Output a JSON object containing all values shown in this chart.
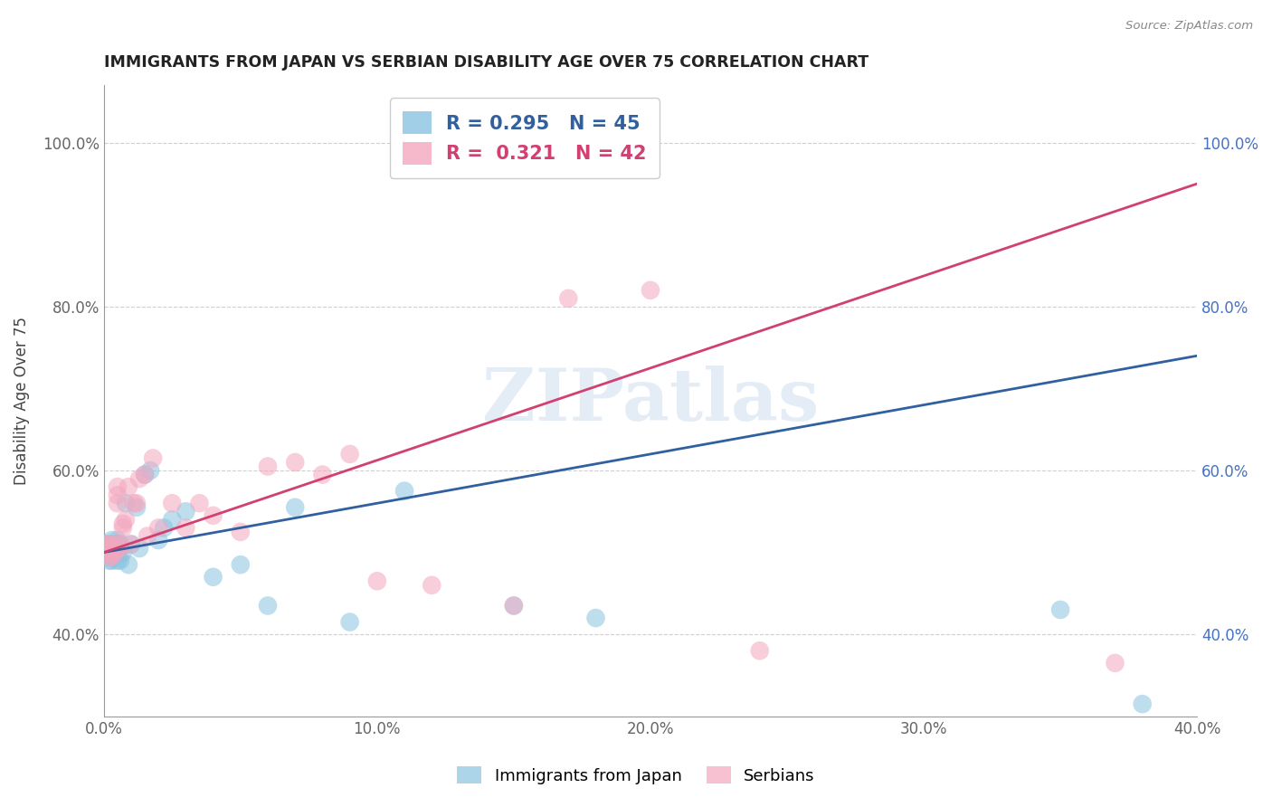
{
  "title": "IMMIGRANTS FROM JAPAN VS SERBIAN DISABILITY AGE OVER 75 CORRELATION CHART",
  "source": "Source: ZipAtlas.com",
  "ylabel": "Disability Age Over 75",
  "xlim": [
    0.0,
    0.4
  ],
  "ylim": [
    0.3,
    1.07
  ],
  "xticks": [
    0.0,
    0.1,
    0.2,
    0.3,
    0.4
  ],
  "yticks": [
    0.4,
    0.6,
    0.8,
    1.0
  ],
  "ytick_labels": [
    "40.0%",
    "60.0%",
    "80.0%",
    "100.0%"
  ],
  "xtick_labels": [
    "0.0%",
    "10.0%",
    "20.0%",
    "30.0%",
    "40.0%"
  ],
  "blue_R": 0.295,
  "blue_N": 45,
  "pink_R": 0.321,
  "pink_N": 42,
  "blue_color": "#89c4e1",
  "pink_color": "#f4a7bf",
  "blue_line_color": "#3060a0",
  "pink_line_color": "#d04070",
  "legend_blue_label": "Immigrants from Japan",
  "legend_pink_label": "Serbians",
  "watermark": "ZIPatlas",
  "blue_line_x0": 0.0,
  "blue_line_y0": 0.5,
  "blue_line_x1": 0.4,
  "blue_line_y1": 0.74,
  "pink_line_x0": 0.0,
  "pink_line_y0": 0.5,
  "pink_line_x1": 0.4,
  "pink_line_y1": 0.95,
  "blue_scatter_x": [
    0.001,
    0.001,
    0.001,
    0.001,
    0.002,
    0.002,
    0.002,
    0.002,
    0.003,
    0.003,
    0.003,
    0.003,
    0.003,
    0.004,
    0.004,
    0.004,
    0.005,
    0.005,
    0.005,
    0.005,
    0.006,
    0.006,
    0.006,
    0.007,
    0.008,
    0.009,
    0.01,
    0.012,
    0.013,
    0.015,
    0.017,
    0.02,
    0.022,
    0.025,
    0.03,
    0.04,
    0.05,
    0.06,
    0.07,
    0.09,
    0.11,
    0.15,
    0.18,
    0.35,
    0.38
  ],
  "blue_scatter_y": [
    0.505,
    0.495,
    0.51,
    0.5,
    0.49,
    0.5,
    0.505,
    0.51,
    0.5,
    0.49,
    0.495,
    0.505,
    0.515,
    0.5,
    0.505,
    0.51,
    0.49,
    0.5,
    0.51,
    0.515,
    0.49,
    0.505,
    0.51,
    0.5,
    0.56,
    0.485,
    0.51,
    0.555,
    0.505,
    0.595,
    0.6,
    0.515,
    0.53,
    0.54,
    0.55,
    0.47,
    0.485,
    0.435,
    0.555,
    0.415,
    0.575,
    0.435,
    0.42,
    0.43,
    0.315
  ],
  "pink_scatter_x": [
    0.001,
    0.001,
    0.002,
    0.002,
    0.003,
    0.003,
    0.003,
    0.004,
    0.004,
    0.005,
    0.005,
    0.005,
    0.006,
    0.006,
    0.007,
    0.007,
    0.008,
    0.009,
    0.01,
    0.011,
    0.012,
    0.013,
    0.015,
    0.016,
    0.018,
    0.02,
    0.025,
    0.03,
    0.035,
    0.04,
    0.05,
    0.06,
    0.07,
    0.08,
    0.09,
    0.1,
    0.12,
    0.15,
    0.17,
    0.2,
    0.24,
    0.37
  ],
  "pink_scatter_y": [
    0.505,
    0.51,
    0.495,
    0.51,
    0.5,
    0.505,
    0.495,
    0.51,
    0.5,
    0.56,
    0.57,
    0.58,
    0.51,
    0.505,
    0.535,
    0.53,
    0.54,
    0.58,
    0.51,
    0.56,
    0.56,
    0.59,
    0.595,
    0.52,
    0.615,
    0.53,
    0.56,
    0.53,
    0.56,
    0.545,
    0.525,
    0.605,
    0.61,
    0.595,
    0.62,
    0.465,
    0.46,
    0.435,
    0.81,
    0.82,
    0.38,
    0.365
  ]
}
